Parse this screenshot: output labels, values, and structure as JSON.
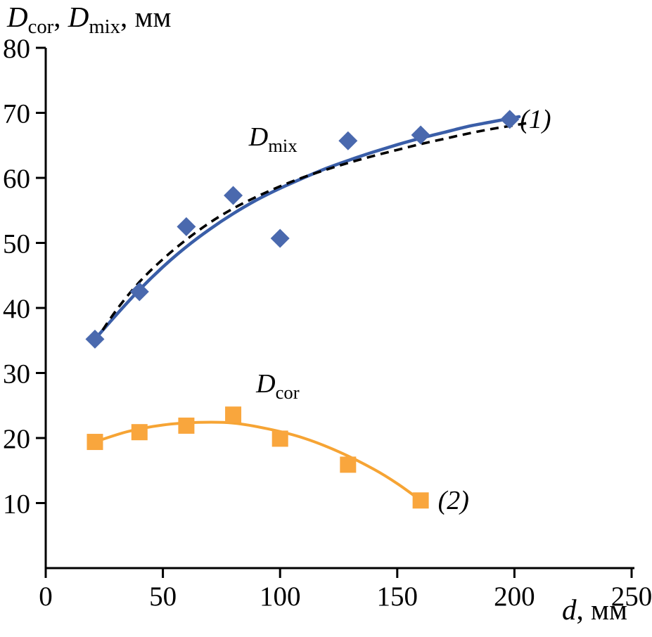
{
  "figure": {
    "y_axis_title": {
      "var1": "D",
      "sub1": "cor",
      "sep": ", ",
      "var2": "D",
      "sub2": "mix",
      "units": ", мм"
    },
    "x_axis_title": {
      "var": "d",
      "units": ", мм"
    }
  },
  "chart_data": {
    "type": "scatter",
    "title": "",
    "ylabel": "Dcor, Dmix, мм",
    "xlabel": "d, мм",
    "xlim": [
      0,
      250
    ],
    "ylim": [
      0,
      80
    ],
    "x_ticks": [
      0,
      50,
      100,
      150,
      200,
      250
    ],
    "y_ticks": [
      10,
      20,
      30,
      40,
      50,
      60,
      70,
      80
    ],
    "grid": false,
    "legend": "none",
    "axis_color": "#000000",
    "series": [
      {
        "key": "dmix",
        "name": "D_mix",
        "tag": "(1)",
        "marker": "diamond",
        "marker_color": "#4a69ae",
        "line_color": "#3a5ea8",
        "line_style": "solid",
        "points": [
          [
            21,
            35.2
          ],
          [
            40,
            42.5
          ],
          [
            60,
            52.5
          ],
          [
            80,
            57.3
          ],
          [
            100,
            50.7
          ],
          [
            129,
            65.7
          ],
          [
            160,
            66.6
          ],
          [
            198,
            69.0
          ]
        ],
        "fit_points": [
          [
            21,
            35.2
          ],
          [
            30,
            38.9
          ],
          [
            40,
            42.8
          ],
          [
            50,
            46.3
          ],
          [
            60,
            49.4
          ],
          [
            70,
            52.1
          ],
          [
            80,
            54.5
          ],
          [
            90,
            56.6
          ],
          [
            100,
            58.4
          ],
          [
            110,
            60.0
          ],
          [
            120,
            61.5
          ],
          [
            130,
            62.8
          ],
          [
            140,
            64.0
          ],
          [
            150,
            65.1
          ],
          [
            160,
            66.1
          ],
          [
            170,
            67.0
          ],
          [
            180,
            67.9
          ],
          [
            190,
            68.6
          ],
          [
            202,
            69.4
          ]
        ]
      },
      {
        "key": "dcor",
        "name": "D_cor",
        "tag": "(2)",
        "marker": "square",
        "marker_color": "#f9a63d",
        "line_color": "#f6a434",
        "line_style": "solid",
        "points": [
          [
            21,
            19.4
          ],
          [
            40,
            20.9
          ],
          [
            60,
            21.9
          ],
          [
            80,
            23.6
          ],
          [
            100,
            19.9
          ],
          [
            129,
            15.9
          ],
          [
            160,
            10.4
          ]
        ],
        "fit_points": [
          [
            21,
            19.4
          ],
          [
            35,
            21.0
          ],
          [
            50,
            22.0
          ],
          [
            65,
            22.4
          ],
          [
            80,
            22.3
          ],
          [
            95,
            21.4
          ],
          [
            110,
            20.0
          ],
          [
            125,
            17.9
          ],
          [
            140,
            15.2
          ],
          [
            150,
            13.0
          ],
          [
            160,
            10.4
          ]
        ]
      }
    ],
    "extra_curves": [
      {
        "key": "dashed-fit",
        "line_color": "#000000",
        "line_style": "dashed",
        "points": [
          [
            21,
            34.8
          ],
          [
            30,
            39.6
          ],
          [
            40,
            44.0
          ],
          [
            50,
            47.5
          ],
          [
            60,
            50.5
          ],
          [
            70,
            53.1
          ],
          [
            80,
            55.3
          ],
          [
            90,
            57.1
          ],
          [
            100,
            58.7
          ],
          [
            110,
            60.1
          ],
          [
            120,
            61.3
          ],
          [
            130,
            62.4
          ],
          [
            140,
            63.4
          ],
          [
            150,
            64.3
          ],
          [
            160,
            65.2
          ],
          [
            170,
            66.0
          ],
          [
            180,
            66.8
          ],
          [
            190,
            67.5
          ],
          [
            200,
            68.1
          ],
          [
            205,
            68.4
          ]
        ]
      }
    ],
    "annotations": [
      {
        "id": "curve-label-dmix",
        "x": 97,
        "y": 66,
        "var": "D",
        "sub": "mix"
      },
      {
        "id": "curve-label-dcor",
        "x": 99,
        "y": 28,
        "var": "D",
        "sub": "cor"
      },
      {
        "id": "series-tag-1",
        "x": 209,
        "y": 69,
        "text": "(1)"
      },
      {
        "id": "series-tag-2",
        "x": 174,
        "y": 10.4,
        "text": "(2)"
      }
    ]
  }
}
